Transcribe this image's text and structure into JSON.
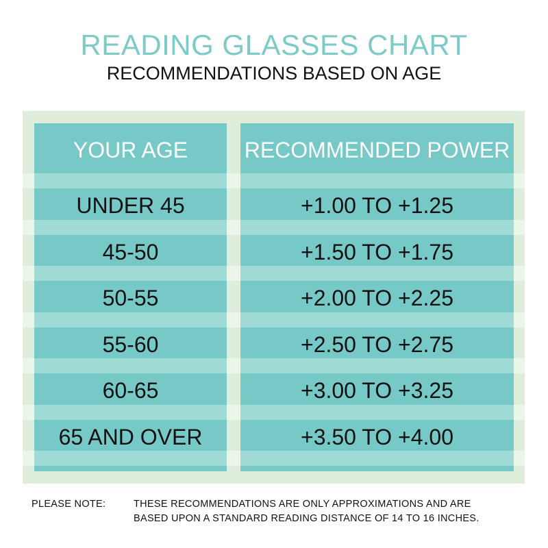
{
  "header": {
    "title": "READING GLASSES CHART",
    "subtitle": "RECOMMENDATIONS BASED ON AGE"
  },
  "colors": {
    "accent": "#76c9c6",
    "stripe": "#a0dbd6",
    "panel": "#deeedb"
  },
  "chart_data": {
    "type": "table",
    "columns": [
      "YOUR AGE",
      "RECOMMENDED POWER"
    ],
    "rows": [
      [
        "UNDER 45",
        "+1.00 TO +1.25"
      ],
      [
        "45-50",
        "+1.50 TO +1.75"
      ],
      [
        "50-55",
        "+2.00 TO +2.25"
      ],
      [
        "55-60",
        "+2.50 TO +2.75"
      ],
      [
        "60-65",
        "+3.00 TO +3.25"
      ],
      [
        "65 AND OVER",
        "+3.50 TO +4.00"
      ]
    ]
  },
  "note": {
    "label": "PLEASE NOTE:",
    "line1": "THESE RECOMMENDATIONS ARE ONLY APPROXIMATIONS AND ARE",
    "line2": "BASED UPON A STANDARD READING DISTANCE OF 14 TO 16 INCHES."
  }
}
